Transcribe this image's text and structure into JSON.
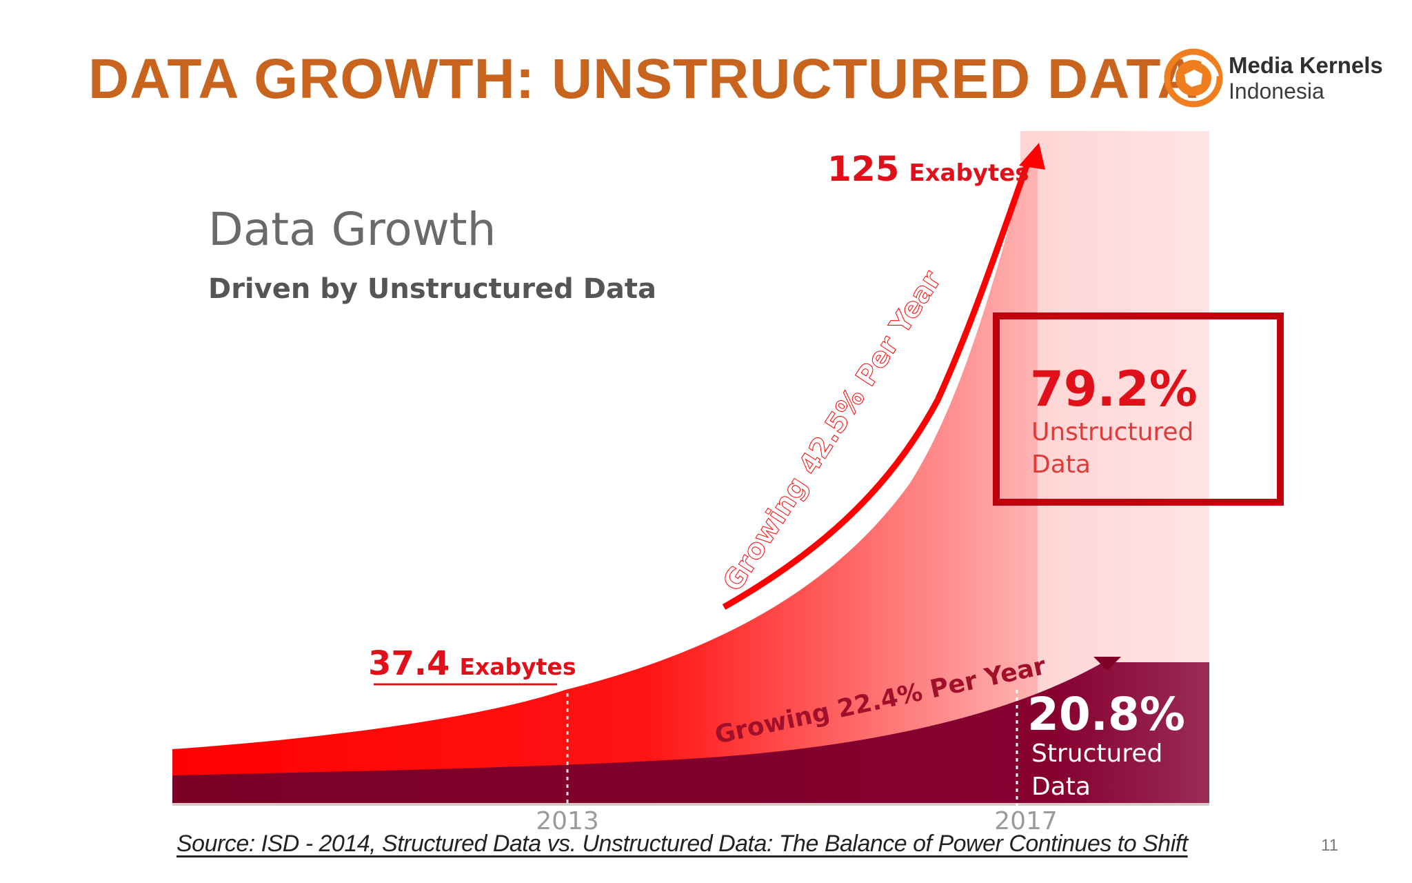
{
  "slide": {
    "title": "DATA GROWTH: UNSTRUCTURED DATA",
    "page_number": "11",
    "source": "Source: ISD - 2014, Structured Data vs. Unstructured Data:  The Balance of Power Continues to Shift"
  },
  "logo": {
    "line1": "Media Kernels",
    "line2": "Indonesia",
    "icon": "media-kernels-logo",
    "color": "#f07d1e"
  },
  "colors": {
    "title": "#c8641e",
    "unstructured": "#ff0000",
    "structured": "#800028",
    "highlight_box": "#c0000c"
  },
  "chart_data": {
    "type": "area",
    "title": "Data Growth",
    "subtitle": "Driven by Unstructured Data",
    "x_ticks": [
      "2013",
      "2017"
    ],
    "series": [
      {
        "name": "Unstructured Data",
        "growth_label": "Growing 42.5% Per Year",
        "share_value": "79.2%",
        "share_label_line1": "Unstructured",
        "share_label_line2": "Data"
      },
      {
        "name": "Structured Data",
        "growth_label": "Growing 22.4% Per Year",
        "share_value": "20.8%",
        "share_label_line1": "Structured",
        "share_label_line2": "Data"
      }
    ],
    "annotations": {
      "value_2013": "37.4",
      "value_2017": "125",
      "unit": "Exabytes"
    },
    "points": [
      {
        "year": 2013,
        "total_exabytes": 37.4
      },
      {
        "year": 2017,
        "total_exabytes": 125
      }
    ]
  }
}
